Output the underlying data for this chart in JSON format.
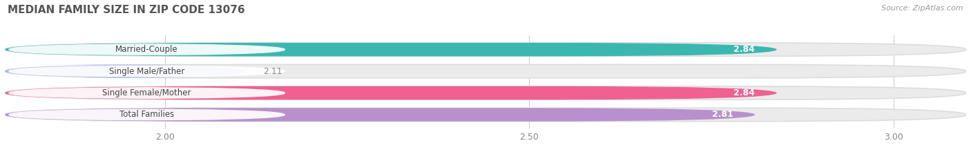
{
  "title": "MEDIAN FAMILY SIZE IN ZIP CODE 13076",
  "source_text": "Source: ZipAtlas.com",
  "categories": [
    "Married-Couple",
    "Single Male/Father",
    "Single Female/Mother",
    "Total Families"
  ],
  "values": [
    2.84,
    2.11,
    2.84,
    2.81
  ],
  "bar_colors": [
    "#3ab8b0",
    "#aab8e8",
    "#f06090",
    "#b890cc"
  ],
  "bar_bg_color": "#e8e8e8",
  "xlim_min": 1.78,
  "xlim_max": 3.1,
  "xticks": [
    2.0,
    2.5,
    3.0
  ],
  "xtick_labels": [
    "2.00",
    "2.50",
    "3.00"
  ],
  "title_color": "#555555",
  "background_color": "#ffffff",
  "bar_height": 0.62,
  "fig_width": 14.06,
  "fig_height": 2.33
}
